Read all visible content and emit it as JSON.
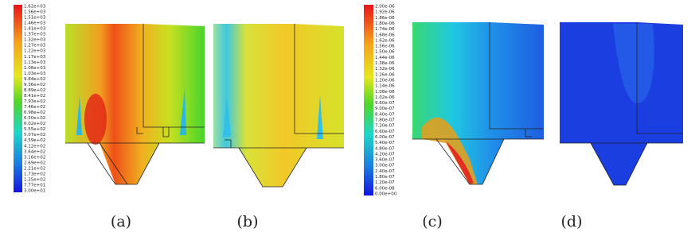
{
  "colorbars": [
    {
      "labels": [
        "1.62e+03",
        "1.56e+03",
        "1.51e+03",
        "1.46e+03",
        "1.41e+03",
        "1.37e+03",
        "1.32e+03",
        "1.27e+03",
        "1.22e+03",
        "1.17e+03",
        "1.13e+03",
        "1.08e+03",
        "1.03e+03",
        "9.84e+02",
        "9.36e+02",
        "8.89e+02",
        "8.41e+02",
        "7.93e+02",
        "7.46e+02",
        "6.98e+02",
        "6.50e+02",
        "6.02e+02",
        "5.55e+02",
        "5.07e+02",
        "4.59e+02",
        "4.12e+02",
        "3.64e+02",
        "3.16e+02",
        "2.69e+02",
        "2.21e+02",
        "1.73e+02",
        "1.25e+02",
        "7.77e+01",
        "3.00e+01"
      ]
    },
    {
      "labels": [
        "2.00e-06",
        "1.92e-06",
        "1.86e-06",
        "1.80e-06",
        "1.74e-06",
        "1.68e-06",
        "1.62e-06",
        "1.56e-06",
        "1.50e-06",
        "1.44e-06",
        "1.38e-06",
        "1.32e-06",
        "1.26e-06",
        "1.20e-06",
        "1.14e-06",
        "1.08e-06",
        "1.02e-06",
        "9.60e-07",
        "9.00e-07",
        "8.40e-07",
        "7.80e-07",
        "7.20e-07",
        "6.60e-07",
        "6.00e-07",
        "5.40e-07",
        "4.80e-07",
        "4.20e-07",
        "3.60e-07",
        "3.00e-07",
        "2.40e-07",
        "1.80e-07",
        "1.20e-07",
        "6.00e-08",
        "0.00e+00"
      ]
    }
  ],
  "panels": [
    {
      "label": "(a)"
    },
    {
      "label": "(b)"
    },
    {
      "label": "(c)"
    },
    {
      "label": "(d)"
    }
  ]
}
